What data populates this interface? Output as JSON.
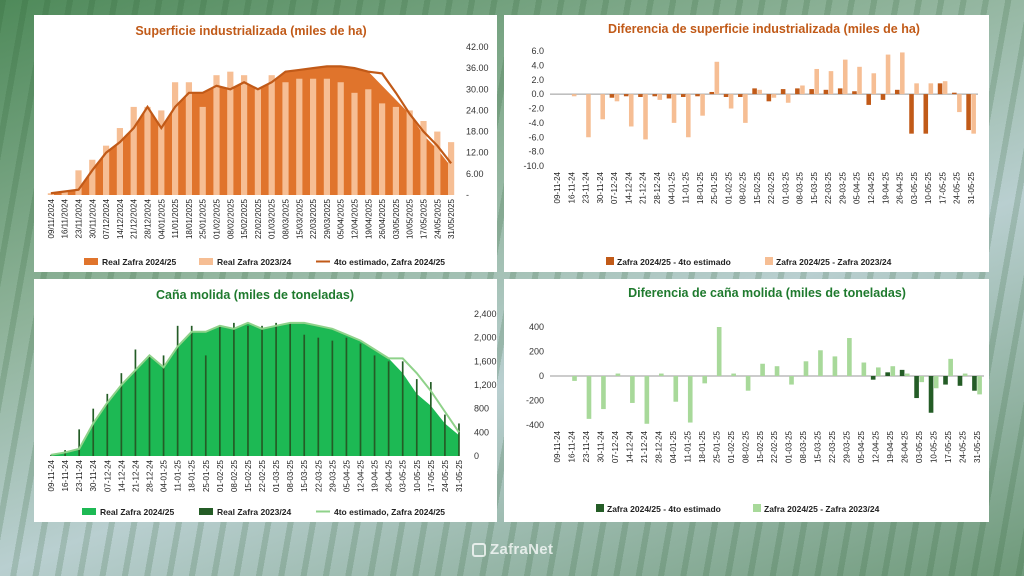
{
  "footer": {
    "brand": "ZafraNet"
  },
  "colors": {
    "orange": "#E0742C",
    "orange_light": "#F6BE94",
    "orange_dark": "#C15A18",
    "green": "#1DB954",
    "green_dark": "#245C26",
    "green_light": "#A8D99A",
    "green_line": "#8FD28A"
  },
  "chart_data": [
    {
      "id": "sup",
      "type": "bar",
      "title": "Superficie industrializada (miles de ha)",
      "categories": [
        "09/11/2024",
        "16/11/2024",
        "23/11/2024",
        "30/11/2024",
        "07/12/2024",
        "14/12/2024",
        "21/12/2024",
        "28/12/2024",
        "04/01/2025",
        "11/01/2025",
        "18/01/2025",
        "25/01/2025",
        "01/02/2025",
        "08/02/2025",
        "15/02/2025",
        "22/02/2025",
        "01/03/2025",
        "08/03/2025",
        "15/03/2025",
        "22/03/2025",
        "29/03/2025",
        "05/04/2025",
        "12/04/2025",
        "19/04/2025",
        "26/04/2025",
        "03/05/2025",
        "10/05/2025",
        "17/05/2025",
        "24/05/2025",
        "31/05/2025"
      ],
      "ylim": [
        0,
        42
      ],
      "yticks": [
        "-",
        "6.00",
        "12.00",
        "18.00",
        "24.00",
        "30.00",
        "36.00",
        "42.00"
      ],
      "series": [
        {
          "name": "Real Zafra 2024/25",
          "kind": "area",
          "values": [
            0.5,
            1,
            1.5,
            7,
            12,
            15,
            19,
            25,
            19,
            25,
            29,
            29,
            31,
            30,
            32,
            30,
            32,
            35,
            35.5,
            36,
            36.5,
            36.5,
            36,
            35,
            31,
            27,
            23,
            17,
            13,
            8
          ]
        },
        {
          "name": "Real Zafra 2023/24",
          "kind": "bar",
          "values": [
            0.5,
            1,
            7,
            10,
            14,
            19,
            25,
            25,
            24,
            32,
            32,
            25,
            34,
            35,
            34,
            30,
            34,
            32,
            33,
            33,
            33,
            32,
            29,
            30,
            26,
            25,
            24,
            21,
            18,
            15
          ]
        },
        {
          "name": "4to estimado, Zafra 2024/25",
          "kind": "line",
          "values": [
            0.5,
            1,
            1.5,
            7,
            12,
            15,
            19,
            25,
            19,
            25,
            29,
            29,
            31,
            30,
            32,
            30,
            32,
            35,
            35.5,
            36,
            36.5,
            36.5,
            36,
            35,
            34.5,
            29,
            23,
            18,
            14,
            9
          ]
        }
      ]
    },
    {
      "id": "difsup",
      "type": "bar",
      "title": "Diferencia de superficie industrializada (miles de ha)",
      "categories": [
        "09-11-24",
        "16-11-24",
        "23-11-24",
        "30-11-24",
        "07-12-24",
        "14-12-24",
        "21-12-24",
        "28-12-24",
        "04-01-25",
        "11-01-25",
        "18-01-25",
        "25-01-25",
        "01-02-25",
        "08-02-25",
        "15-02-25",
        "22-02-25",
        "01-03-25",
        "08-03-25",
        "15-03-25",
        "22-03-25",
        "29-03-25",
        "05-04-25",
        "12-04-25",
        "19-04-25",
        "26-04-25",
        "03-05-25",
        "10-05-25",
        "17-05-25",
        "24-05-25",
        "31-05-25"
      ],
      "ylim": [
        -10,
        6
      ],
      "yticks": [
        "-10.0",
        "-8.0",
        "-6.0",
        "-4.0",
        "-2.0",
        "0.0",
        "2.0",
        "4.0",
        "6.0"
      ],
      "series": [
        {
          "name": "Zafra 2024/25 - 4to estimado",
          "values": [
            0,
            0,
            0,
            0,
            -0.5,
            -0.3,
            -0.4,
            -0.3,
            -0.6,
            -0.4,
            -0.3,
            0.3,
            -0.4,
            -0.4,
            0.8,
            -1,
            0.7,
            0.8,
            0.7,
            0.6,
            0.8,
            0.4,
            -1.5,
            -0.8,
            0.6,
            -5.5,
            -5.5,
            1.5,
            0.2,
            -5
          ]
        },
        {
          "name": "Zafra 2024/25 - Zafra 2023/24",
          "values": [
            0,
            -0.3,
            -6,
            -3.5,
            -1,
            -4.5,
            -6.3,
            -0.8,
            -4,
            -6,
            -3,
            4.5,
            -2,
            -4,
            0.6,
            -0.5,
            -1.2,
            1.2,
            3.5,
            3.2,
            4.8,
            3.8,
            2.9,
            5.5,
            5.8,
            1.5,
            1.5,
            1.8,
            -2.5,
            -5.5
          ]
        }
      ]
    },
    {
      "id": "cana",
      "type": "bar",
      "title": "Caña molida (miles de toneladas)",
      "categories": [
        "09-11-24",
        "16-11-24",
        "23-11-24",
        "30-11-24",
        "07-12-24",
        "14-12-24",
        "21-12-24",
        "28-12-24",
        "04-01-25",
        "11-01-25",
        "18-01-25",
        "25-01-25",
        "01-02-25",
        "08-02-25",
        "15-02-25",
        "22-02-25",
        "01-03-25",
        "08-03-25",
        "15-03-25",
        "22-03-25",
        "29-03-25",
        "05-04-25",
        "12-04-25",
        "19-04-25",
        "26-04-25",
        "03-05-25",
        "10-05-25",
        "17-05-25",
        "24-05-25",
        "31-05-25"
      ],
      "ylim": [
        0,
        2400
      ],
      "yticks": [
        "0",
        "400",
        "800",
        "1,200",
        "1,600",
        "2,000",
        "2,400"
      ],
      "series": [
        {
          "name": "Real Zafra 2024/25",
          "kind": "area",
          "values": [
            20,
            60,
            120,
            550,
            900,
            1200,
            1450,
            1700,
            1500,
            1850,
            2100,
            2100,
            2200,
            2150,
            2250,
            2150,
            2200,
            2250,
            2250,
            2200,
            2150,
            2050,
            1950,
            1800,
            1650,
            1400,
            1050,
            850,
            550,
            350
          ]
        },
        {
          "name": "Real Zafra 2023/24",
          "kind": "bar",
          "values": [
            20,
            100,
            450,
            800,
            1050,
            1400,
            1800,
            1700,
            1700,
            2200,
            2200,
            1700,
            2200,
            2250,
            2200,
            2200,
            2250,
            2250,
            2050,
            2000,
            1950,
            2000,
            1900,
            1700,
            1600,
            1600,
            1300,
            1250,
            700,
            550
          ]
        },
        {
          "name": "4to estimado, Zafra 2024/25",
          "kind": "line",
          "values": [
            20,
            60,
            120,
            550,
            900,
            1200,
            1450,
            1700,
            1500,
            1850,
            2100,
            2100,
            2200,
            2150,
            2250,
            2150,
            2200,
            2250,
            2250,
            2200,
            2150,
            2050,
            1950,
            1800,
            1650,
            1650,
            1400,
            1100,
            750,
            400
          ]
        }
      ]
    },
    {
      "id": "difcana",
      "type": "bar",
      "title": "Diferencia de caña molida (miles de toneladas)",
      "categories": [
        "09-11-24",
        "16-11-24",
        "23-11-24",
        "30-11-24",
        "07-12-24",
        "14-12-24",
        "21-12-24",
        "28-12-24",
        "04-01-25",
        "11-01-25",
        "18-01-25",
        "25-01-25",
        "01-02-25",
        "08-02-25",
        "15-02-25",
        "22-02-25",
        "01-03-25",
        "08-03-25",
        "15-03-25",
        "22-03-25",
        "29-03-25",
        "05-04-25",
        "12-04-25",
        "19-04-25",
        "26-04-25",
        "03-05-25",
        "10-05-25",
        "17-05-25",
        "24-05-25",
        "31-05-25"
      ],
      "ylim": [
        -400,
        400
      ],
      "yticks": [
        "-400",
        "-200",
        "0",
        "200",
        "400"
      ],
      "series": [
        {
          "name": "Zafra 2024/25 - 4to estimado",
          "values": [
            0,
            0,
            0,
            0,
            0,
            0,
            0,
            0,
            0,
            0,
            0,
            0,
            0,
            0,
            0,
            0,
            0,
            0,
            0,
            0,
            0,
            0,
            -30,
            30,
            50,
            -180,
            -300,
            -70,
            -80,
            -120
          ]
        },
        {
          "name": "Zafra 2024/25 - Zafra 2023/24",
          "values": [
            0,
            -40,
            -350,
            -270,
            20,
            -220,
            -390,
            20,
            -210,
            -380,
            -60,
            400,
            20,
            -120,
            100,
            80,
            -70,
            120,
            210,
            160,
            310,
            110,
            70,
            80,
            20,
            -50,
            -100,
            140,
            20,
            -150
          ]
        }
      ]
    }
  ]
}
